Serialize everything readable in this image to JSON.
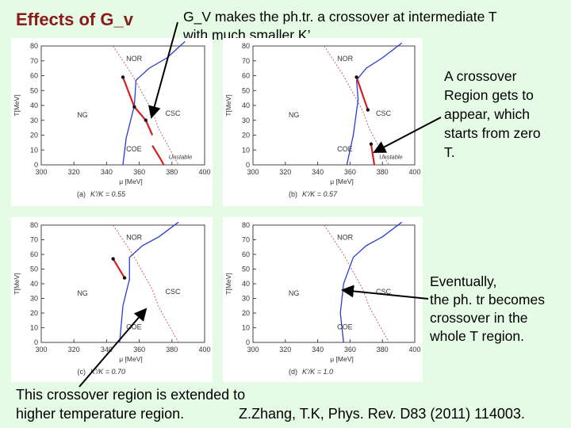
{
  "slide": {
    "title": "Effects of G_v",
    "top_note": [
      "G_V makes the ph.tr. a crossover at intermediate T",
      "with much smaller K’."
    ],
    "right_note_1": [
      "A crossover",
      "Region gets to",
      "appear, which",
      "starts from zero",
      "T."
    ],
    "right_note_2": [
      "Eventually,",
      "the ph. tr becomes",
      "crossover in the",
      "whole T region."
    ],
    "bottom_note": [
      "This crossover region is extended to",
      "higher temperature region."
    ],
    "citation": "Z.Zhang, T.K, Phys. Rev. D83 (2011) 114003."
  },
  "panels": [
    {
      "id": "a",
      "caption_letter": "(a)",
      "caption_ratio": "K′/K = 0.55",
      "labels": {
        "nor": "NOR",
        "ng": "NG",
        "csc": "CSC",
        "coe": "COE",
        "unstable": "Unstable"
      }
    },
    {
      "id": "b",
      "caption_letter": "(b)",
      "caption_ratio": "K′/K = 0.57",
      "labels": {
        "nor": "NOR",
        "ng": "NG",
        "csc": "CSC",
        "coe": "COE",
        "unstable": "Unstable"
      }
    },
    {
      "id": "c",
      "caption_letter": "(c)",
      "caption_ratio": "K′/K = 0.70",
      "labels": {
        "nor": "NOR",
        "ng": "NG",
        "csc": "CSC",
        "coe": "COE"
      }
    },
    {
      "id": "d",
      "caption_letter": "(d)",
      "caption_ratio": "K′/K = 1.0",
      "labels": {
        "nor": "NOR",
        "ng": "NG",
        "csc": "CSC",
        "coe": "COE"
      }
    }
  ],
  "axes": {
    "x_label": "μ [MeV]",
    "y_label": "T[MeV]",
    "x_ticks": [
      "300",
      "320",
      "340",
      "360",
      "380",
      "400"
    ],
    "y_ticks": [
      "0",
      "10",
      "20",
      "30",
      "40",
      "50",
      "60",
      "70",
      "80"
    ]
  },
  "colors": {
    "background": "#e6fbe6",
    "title": "#8b1a1a",
    "first_order": "#d42020",
    "crossover": "#2a3bd0",
    "spinodal": "#d06060"
  }
}
